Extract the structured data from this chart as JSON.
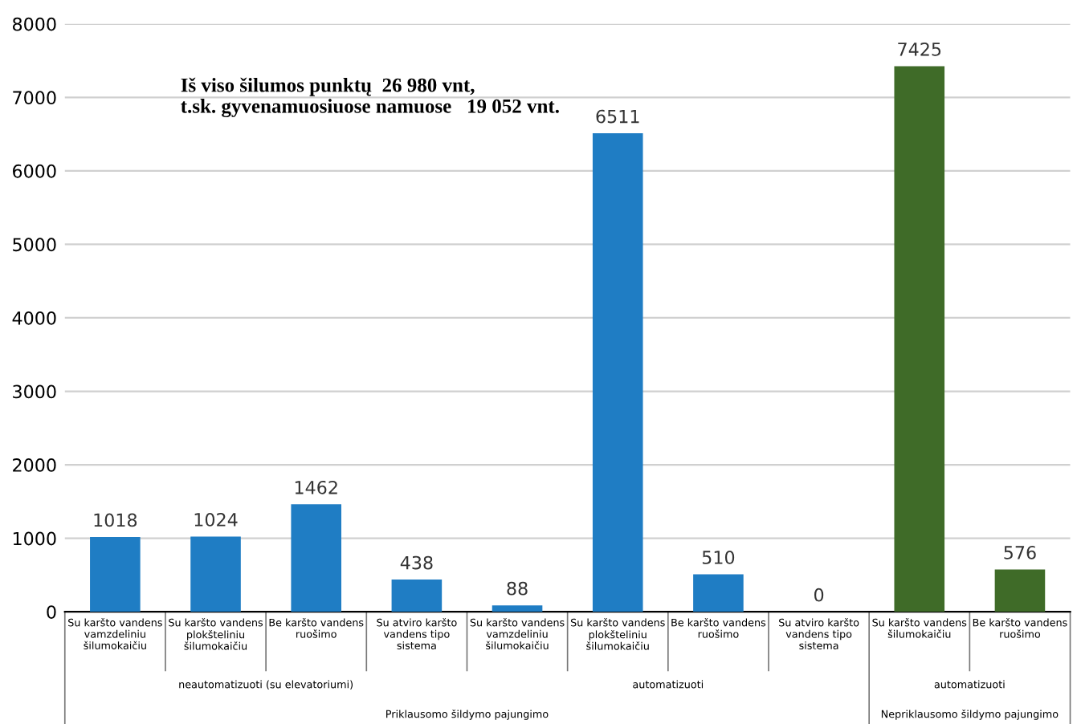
{
  "chart_data": {
    "type": "bar",
    "categories": [
      "Su karšto vandens\nvamzdeliniu\nšilumokaičiu",
      "Su karšto vandens\nplokšteliniu\nšilumokaičiu",
      "Be karšto vandens\nruošimo",
      "Su atviro karšto\nvandens tipo\nsistema",
      "Su karšto vandens\nvamzdeliniu\nšilumokaičiu",
      "Su karšto vandens\nplokšteliniu\nšilumokaičiu",
      "Be karšto vandens\nruošimo",
      "Su atviro karšto\nvandens tipo\nsistema",
      "Su karšto vandens\nšilumokaičiu",
      "Be karšto vandens\nruošimo"
    ],
    "values": [
      1018,
      1024,
      1462,
      438,
      88,
      6511,
      510,
      0,
      7425,
      576
    ],
    "colors": [
      "#1f7dc4",
      "#1f7dc4",
      "#1f7dc4",
      "#1f7dc4",
      "#1f7dc4",
      "#1f7dc4",
      "#1f7dc4",
      "#1f7dc4",
      "#3f6b28",
      "#3f6b28"
    ],
    "data_labels": true,
    "ylim": [
      0,
      8000
    ],
    "yticks": [
      0,
      1000,
      2000,
      3000,
      4000,
      5000,
      6000,
      7000,
      8000
    ],
    "grid": "y",
    "annotations": [
      "Iš viso šilumos punktų  26 980 vnt,\nt.sk. gyvenamuosiuose namuose   19 052 vnt.",
      "neautomatizuoti (su elevatoriumi)",
      "automatizuoti",
      "Priklausomo šildymo pajungimo",
      "automatizuoti",
      "Nepriklausomo šildymo pajungimo"
    ]
  }
}
